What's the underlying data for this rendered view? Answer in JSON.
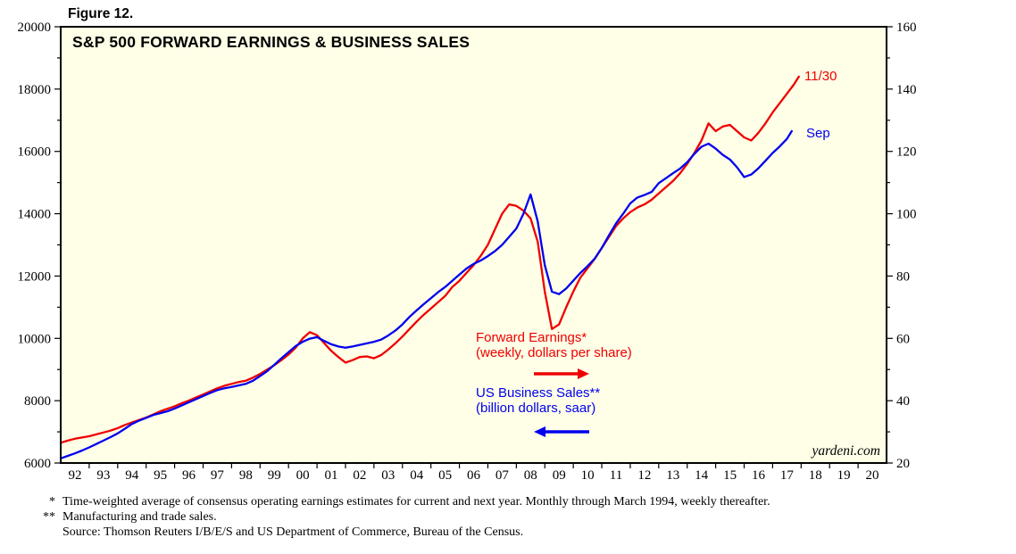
{
  "figure": {
    "label": "Figure 12."
  },
  "chart_data": {
    "type": "line",
    "title": "S&P 500 FORWARD EARNINGS & BUSINESS SALES",
    "background_color": "#FFFFE7",
    "grid": false,
    "legend_position": "none",
    "x_axis": {
      "min": 1992,
      "max": 2021,
      "tick_years": [
        1992,
        1993,
        1994,
        1995,
        1996,
        1997,
        1998,
        1999,
        2000,
        2001,
        2002,
        2003,
        2004,
        2005,
        2006,
        2007,
        2008,
        2009,
        2010,
        2011,
        2012,
        2013,
        2014,
        2015,
        2016,
        2017,
        2018,
        2019,
        2020
      ],
      "tick_labels": [
        "92",
        "93",
        "94",
        "95",
        "96",
        "97",
        "98",
        "99",
        "00",
        "01",
        "02",
        "03",
        "04",
        "05",
        "06",
        "07",
        "08",
        "09",
        "10",
        "11",
        "12",
        "13",
        "14",
        "15",
        "16",
        "17",
        "18",
        "19",
        "20"
      ]
    },
    "left_axis": {
      "min": 6000,
      "max": 20000,
      "major_step": 2000,
      "minor_step": 1000,
      "tick_labels": [
        "6000",
        "8000",
        "10000",
        "12000",
        "14000",
        "16000",
        "18000",
        "20000"
      ]
    },
    "right_axis": {
      "min": 20,
      "max": 160,
      "major_step": 20,
      "minor_step": 10,
      "tick_labels": [
        "20",
        "40",
        "60",
        "80",
        "100",
        "120",
        "140",
        "160"
      ]
    },
    "series": [
      {
        "name": "Forward Earnings",
        "color": "#EE0000",
        "axis": "right",
        "end_label": "11/30",
        "points": [
          [
            1992,
            26.5
          ],
          [
            1992.25,
            27.2
          ],
          [
            1992.5,
            27.8
          ],
          [
            1992.75,
            28.2
          ],
          [
            1993,
            28.6
          ],
          [
            1993.25,
            29.2
          ],
          [
            1993.5,
            29.8
          ],
          [
            1993.75,
            30.4
          ],
          [
            1994,
            31.2
          ],
          [
            1994.25,
            32.2
          ],
          [
            1994.5,
            33
          ],
          [
            1994.75,
            33.8
          ],
          [
            1995,
            34.6
          ],
          [
            1995.25,
            35.6
          ],
          [
            1995.5,
            36.6
          ],
          [
            1995.75,
            37.4
          ],
          [
            1996,
            38.2
          ],
          [
            1996.25,
            39.2
          ],
          [
            1996.5,
            40
          ],
          [
            1996.75,
            41
          ],
          [
            1997,
            42
          ],
          [
            1997.25,
            43
          ],
          [
            1997.5,
            44
          ],
          [
            1997.75,
            44.8
          ],
          [
            1998,
            45.4
          ],
          [
            1998.25,
            46
          ],
          [
            1998.5,
            46.4
          ],
          [
            1998.75,
            47.4
          ],
          [
            1999,
            48.6
          ],
          [
            1999.25,
            50
          ],
          [
            1999.5,
            51.4
          ],
          [
            1999.75,
            53
          ],
          [
            2000,
            54.8
          ],
          [
            2000.25,
            57
          ],
          [
            2000.5,
            60
          ],
          [
            2000.75,
            62
          ],
          [
            2001,
            61
          ],
          [
            2001.25,
            58.5
          ],
          [
            2001.5,
            56
          ],
          [
            2001.75,
            54
          ],
          [
            2002,
            52.2
          ],
          [
            2002.25,
            53
          ],
          [
            2002.5,
            54
          ],
          [
            2002.75,
            54.2
          ],
          [
            2003,
            53.6
          ],
          [
            2003.25,
            54.6
          ],
          [
            2003.5,
            56.4
          ],
          [
            2003.75,
            58.4
          ],
          [
            2004,
            60.6
          ],
          [
            2004.25,
            63
          ],
          [
            2004.5,
            65.4
          ],
          [
            2004.75,
            67.6
          ],
          [
            2005,
            69.6
          ],
          [
            2005.25,
            71.6
          ],
          [
            2005.5,
            73.6
          ],
          [
            2005.75,
            76.5
          ],
          [
            2006,
            78.5
          ],
          [
            2006.25,
            81
          ],
          [
            2006.5,
            83.5
          ],
          [
            2006.75,
            86.5
          ],
          [
            2007,
            90
          ],
          [
            2007.25,
            95
          ],
          [
            2007.5,
            100
          ],
          [
            2007.75,
            103
          ],
          [
            2008,
            102.5
          ],
          [
            2008.25,
            101
          ],
          [
            2008.5,
            98.5
          ],
          [
            2008.75,
            91
          ],
          [
            2009,
            75
          ],
          [
            2009.25,
            63
          ],
          [
            2009.5,
            64.5
          ],
          [
            2009.75,
            70
          ],
          [
            2010,
            75
          ],
          [
            2010.25,
            79.5
          ],
          [
            2010.5,
            82.5
          ],
          [
            2010.75,
            85.5
          ],
          [
            2011,
            89
          ],
          [
            2011.25,
            92.5
          ],
          [
            2011.5,
            96
          ],
          [
            2011.75,
            98.5
          ],
          [
            2012,
            100.5
          ],
          [
            2012.25,
            102
          ],
          [
            2012.5,
            103
          ],
          [
            2012.75,
            104.5
          ],
          [
            2013,
            106.5
          ],
          [
            2013.25,
            108.5
          ],
          [
            2013.5,
            110.5
          ],
          [
            2013.75,
            113
          ],
          [
            2014,
            116
          ],
          [
            2014.25,
            119.5
          ],
          [
            2014.5,
            123.5
          ],
          [
            2014.75,
            129
          ],
          [
            2015,
            126.5
          ],
          [
            2015.25,
            128
          ],
          [
            2015.5,
            128.5
          ],
          [
            2015.75,
            126.5
          ],
          [
            2016,
            124.5
          ],
          [
            2016.25,
            123.5
          ],
          [
            2016.5,
            126
          ],
          [
            2016.75,
            129
          ],
          [
            2017,
            132.5
          ],
          [
            2017.25,
            135.5
          ],
          [
            2017.5,
            138.5
          ],
          [
            2017.75,
            141.5
          ],
          [
            2017.92,
            144
          ]
        ]
      },
      {
        "name": "US Business Sales",
        "color": "#0000EE",
        "axis": "left",
        "end_label": "Sep",
        "points": [
          [
            1992,
            6150
          ],
          [
            1992.25,
            6230
          ],
          [
            1992.5,
            6310
          ],
          [
            1992.75,
            6400
          ],
          [
            1993,
            6500
          ],
          [
            1993.25,
            6610
          ],
          [
            1993.5,
            6720
          ],
          [
            1993.75,
            6830
          ],
          [
            1994,
            6950
          ],
          [
            1994.25,
            7100
          ],
          [
            1994.5,
            7250
          ],
          [
            1994.75,
            7360
          ],
          [
            1995,
            7450
          ],
          [
            1995.25,
            7540
          ],
          [
            1995.5,
            7600
          ],
          [
            1995.75,
            7660
          ],
          [
            1996,
            7750
          ],
          [
            1996.25,
            7850
          ],
          [
            1996.5,
            7950
          ],
          [
            1996.75,
            8050
          ],
          [
            1997,
            8150
          ],
          [
            1997.25,
            8250
          ],
          [
            1997.5,
            8340
          ],
          [
            1997.75,
            8400
          ],
          [
            1998,
            8440
          ],
          [
            1998.25,
            8490
          ],
          [
            1998.5,
            8540
          ],
          [
            1998.75,
            8640
          ],
          [
            1999,
            8790
          ],
          [
            1999.25,
            8950
          ],
          [
            1999.5,
            9150
          ],
          [
            1999.75,
            9360
          ],
          [
            2000,
            9560
          ],
          [
            2000.25,
            9750
          ],
          [
            2000.5,
            9890
          ],
          [
            2000.75,
            9990
          ],
          [
            2001,
            10040
          ],
          [
            2001.25,
            9920
          ],
          [
            2001.5,
            9810
          ],
          [
            2001.75,
            9740
          ],
          [
            2002,
            9700
          ],
          [
            2002.25,
            9740
          ],
          [
            2002.5,
            9790
          ],
          [
            2002.75,
            9840
          ],
          [
            2003,
            9890
          ],
          [
            2003.25,
            9960
          ],
          [
            2003.5,
            10090
          ],
          [
            2003.75,
            10250
          ],
          [
            2004,
            10450
          ],
          [
            2004.25,
            10690
          ],
          [
            2004.5,
            10900
          ],
          [
            2004.75,
            11100
          ],
          [
            2005,
            11290
          ],
          [
            2005.25,
            11480
          ],
          [
            2005.5,
            11650
          ],
          [
            2005.75,
            11850
          ],
          [
            2006,
            12050
          ],
          [
            2006.25,
            12240
          ],
          [
            2006.5,
            12390
          ],
          [
            2006.75,
            12500
          ],
          [
            2007,
            12640
          ],
          [
            2007.25,
            12800
          ],
          [
            2007.5,
            13000
          ],
          [
            2007.75,
            13260
          ],
          [
            2008,
            13520
          ],
          [
            2008.25,
            14000
          ],
          [
            2008.5,
            14620
          ],
          [
            2008.75,
            13750
          ],
          [
            2009,
            12350
          ],
          [
            2009.25,
            11500
          ],
          [
            2009.5,
            11420
          ],
          [
            2009.75,
            11600
          ],
          [
            2010,
            11850
          ],
          [
            2010.25,
            12100
          ],
          [
            2010.5,
            12320
          ],
          [
            2010.75,
            12560
          ],
          [
            2011,
            12900
          ],
          [
            2011.25,
            13300
          ],
          [
            2011.5,
            13690
          ],
          [
            2011.75,
            14000
          ],
          [
            2012,
            14330
          ],
          [
            2012.25,
            14520
          ],
          [
            2012.5,
            14600
          ],
          [
            2012.75,
            14700
          ],
          [
            2013,
            14980
          ],
          [
            2013.25,
            15140
          ],
          [
            2013.5,
            15300
          ],
          [
            2013.75,
            15450
          ],
          [
            2014,
            15650
          ],
          [
            2014.25,
            15920
          ],
          [
            2014.5,
            16150
          ],
          [
            2014.75,
            16250
          ],
          [
            2015,
            16090
          ],
          [
            2015.25,
            15890
          ],
          [
            2015.5,
            15740
          ],
          [
            2015.75,
            15490
          ],
          [
            2016,
            15180
          ],
          [
            2016.25,
            15260
          ],
          [
            2016.5,
            15460
          ],
          [
            2016.75,
            15700
          ],
          [
            2017,
            15950
          ],
          [
            2017.25,
            16160
          ],
          [
            2017.5,
            16400
          ],
          [
            2017.67,
            16650
          ]
        ]
      }
    ],
    "annotations": {
      "series1_label_line1": "Forward Earnings*",
      "series1_label_line2": "(weekly, dollars per share)",
      "series2_label_line1": "US Business Sales**",
      "series2_label_line2": "(billion dollars, saar)",
      "watermark": "yardeni.com"
    }
  },
  "footnotes": [
    {
      "marker": "*",
      "text": "Time-weighted average of consensus operating earnings estimates for current and next year. Monthly through March 1994, weekly thereafter."
    },
    {
      "marker": "**",
      "text": "Manufacturing and trade sales."
    },
    {
      "marker": "",
      "text": "Source: Thomson Reuters I/B/E/S and US Department of Commerce, Bureau of the Census."
    }
  ]
}
